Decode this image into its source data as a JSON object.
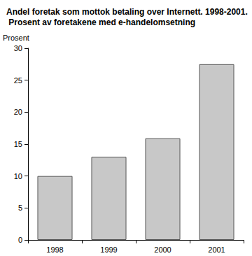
{
  "chart_data": {
    "type": "bar",
    "title": "Andel foretak som mottok betaling over Internett. 1998-2001. Prosent av foretakene med e-handelomsetning",
    "y_label": "Prosent",
    "categories": [
      "1998",
      "1999",
      "2000",
      "2001"
    ],
    "values": [
      10,
      13,
      15.9,
      27.5
    ],
    "color": "#c8c8c8",
    "ylim": [
      0,
      30
    ],
    "yticks": [
      0,
      5,
      10,
      15,
      20,
      25,
      30
    ],
    "grid": false
  }
}
